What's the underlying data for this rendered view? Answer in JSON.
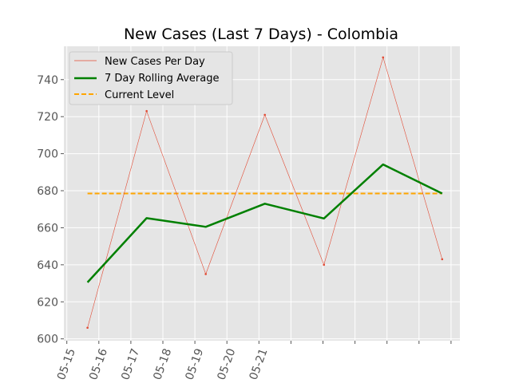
{
  "chart_data": {
    "type": "line",
    "title": "New Cases (Last 7 Days) - Colombia",
    "xlabel": "",
    "ylabel": "",
    "x_tick_labels": [
      "05-15",
      "05-16",
      "05-17",
      "05-18",
      "05-19",
      "05-20",
      "05-21"
    ],
    "ylim": [
      599,
      758
    ],
    "y_ticks": [
      600,
      620,
      640,
      660,
      680,
      700,
      720,
      740
    ],
    "grid": true,
    "legend_position": "top-left",
    "series": [
      {
        "name": "New Cases Per Day",
        "color": "#e24a33",
        "style": "thin-line-with-points",
        "values": [
          606,
          723,
          635,
          721,
          640,
          752,
          643
        ]
      },
      {
        "name": "7 Day Rolling Average",
        "color": "#008000",
        "style": "thick-line",
        "values": [
          630.5,
          665.2,
          660.5,
          673.0,
          665.0,
          694.2,
          678.5
        ]
      },
      {
        "name": "Current Level",
        "color": "#ffa500",
        "style": "dashed-line",
        "values": [
          678.5,
          678.5,
          678.5,
          678.5,
          678.5,
          678.5,
          678.5
        ]
      }
    ],
    "colors": {
      "plot_background": "#e5e5e5",
      "grid": "#ffffff",
      "tick_text": "#555555"
    }
  }
}
